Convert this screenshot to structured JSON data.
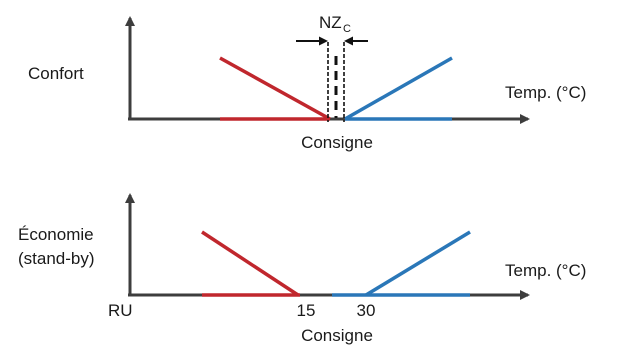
{
  "colors": {
    "axis": "#3d3d3d",
    "heating": "#c0272d",
    "cooling": "#2a77b8",
    "text": "#1a1a1a"
  },
  "panels": {
    "top": {
      "label": "Confort",
      "axis_label": "Temp. (°C)",
      "setpoint_label": "Consigne",
      "deadzone_label": "NZ",
      "deadzone_subscript": "C"
    },
    "bottom": {
      "label_line1": "Économie",
      "label_line2": "(stand-by)",
      "axis_label": "Temp. (°C)",
      "setpoint_label": "Consigne",
      "origin_label": "RU",
      "tick_left": "15",
      "tick_right": "30"
    }
  }
}
